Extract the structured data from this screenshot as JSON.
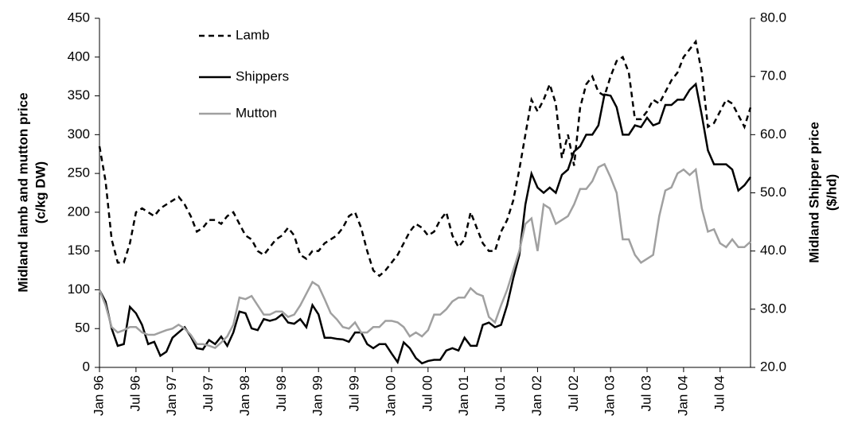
{
  "chart_data": {
    "type": "line",
    "y_label": [
      "Midland lamb and mutton price",
      "(c/kg DW)"
    ],
    "y2_label": [
      "Midland Shipper price",
      "($/hd)"
    ],
    "categories": [
      "Jan 96",
      null,
      null,
      null,
      null,
      null,
      "Jul 96",
      null,
      null,
      null,
      null,
      null,
      "Jan 97",
      null,
      null,
      null,
      null,
      null,
      "Jul 97",
      null,
      null,
      null,
      null,
      null,
      "Jan 98",
      null,
      null,
      null,
      null,
      null,
      "Jul 98",
      null,
      null,
      null,
      null,
      null,
      "Jan 99",
      null,
      null,
      null,
      null,
      null,
      "Jul 99",
      null,
      null,
      null,
      null,
      null,
      "Jan 00",
      null,
      null,
      null,
      null,
      null,
      "Jul 00",
      null,
      null,
      null,
      null,
      null,
      "Jan 01",
      null,
      null,
      null,
      null,
      null,
      "Jul 01",
      null,
      null,
      null,
      null,
      null,
      "Jan 02",
      null,
      null,
      null,
      null,
      null,
      "Jul 02",
      null,
      null,
      null,
      null,
      null,
      "Jan 03",
      null,
      null,
      null,
      null,
      null,
      "Jul 03",
      null,
      null,
      null,
      null,
      null,
      "Jan 04",
      null,
      null,
      null,
      null,
      null,
      "Jul 04",
      null,
      null,
      null,
      null,
      null
    ],
    "ylim": [
      0,
      450
    ],
    "yticks": [
      0,
      50,
      100,
      150,
      200,
      250,
      300,
      350,
      400,
      450
    ],
    "y2lim": [
      20,
      80
    ],
    "y2ticks": [
      {
        "value": 20,
        "label": "20.0"
      },
      {
        "value": 30,
        "label": "30.0"
      },
      {
        "value": 40,
        "label": "40.0"
      },
      {
        "value": 50,
        "label": "50.0"
      },
      {
        "value": 60,
        "label": "60.0"
      },
      {
        "value": 70,
        "label": "70.0"
      },
      {
        "value": 80,
        "label": "80.0"
      }
    ],
    "grid": false,
    "legend": "top-left",
    "series": [
      {
        "name": "Lamb",
        "color": "#000000",
        "dashed": true,
        "values": [
          285,
          240,
          165,
          135,
          135,
          160,
          200,
          205,
          200,
          195,
          205,
          210,
          215,
          220,
          210,
          195,
          175,
          180,
          190,
          190,
          185,
          195,
          200,
          185,
          170,
          165,
          150,
          145,
          155,
          165,
          170,
          180,
          170,
          145,
          140,
          150,
          150,
          160,
          165,
          170,
          180,
          195,
          200,
          180,
          150,
          125,
          118,
          125,
          135,
          145,
          160,
          175,
          185,
          180,
          170,
          175,
          190,
          200,
          170,
          155,
          165,
          200,
          180,
          160,
          150,
          150,
          175,
          190,
          215,
          255,
          300,
          345,
          330,
          345,
          365,
          340,
          270,
          300,
          260,
          335,
          365,
          375,
          355,
          350,
          375,
          395,
          400,
          380,
          320,
          320,
          330,
          345,
          340,
          355,
          370,
          380,
          400,
          410,
          420,
          380,
          310,
          315,
          330,
          345,
          340,
          325,
          310,
          335
        ]
      },
      {
        "name": "Shippers",
        "color": "#000000",
        "axis": "y2",
        "values": [
          33.3,
          31.3,
          26.7,
          23.7,
          24.0,
          30.4,
          29.3,
          27.3,
          24.0,
          24.4,
          22.0,
          22.7,
          25.1,
          26.0,
          26.9,
          25.3,
          23.3,
          23.1,
          24.7,
          24.0,
          25.3,
          23.7,
          26.0,
          29.6,
          29.3,
          26.7,
          26.4,
          28.3,
          28.0,
          28.3,
          29.1,
          27.7,
          27.5,
          28.3,
          26.9,
          30.7,
          29.1,
          25.1,
          25.1,
          24.9,
          24.8,
          24.4,
          26.0,
          26.0,
          24.0,
          23.3,
          24.0,
          24.0,
          22.4,
          20.9,
          24.3,
          23.3,
          21.6,
          20.7,
          21.1,
          21.3,
          21.3,
          22.9,
          23.3,
          22.9,
          25.1,
          23.7,
          23.7,
          27.3,
          27.7,
          26.9,
          27.3,
          30.7,
          35.3,
          39.3,
          48.0,
          53.3,
          50.9,
          50.0,
          50.9,
          50.0,
          53.1,
          54.0,
          57.1,
          58.0,
          60.0,
          60.0,
          61.6,
          66.9,
          66.7,
          64.7,
          60.0,
          60.0,
          61.6,
          61.3,
          62.9,
          61.6,
          62.0,
          65.1,
          65.1,
          66.0,
          66.0,
          67.7,
          68.7,
          63.3,
          57.3,
          54.9,
          54.9,
          54.9,
          54.0,
          50.4,
          51.3,
          52.7
        ]
      },
      {
        "name": "Mutton",
        "color": "#a0a0a0",
        "values": [
          100,
          80,
          52,
          45,
          48,
          52,
          52,
          45,
          42,
          42,
          45,
          48,
          50,
          55,
          50,
          42,
          30,
          30,
          28,
          25,
          32,
          40,
          55,
          90,
          88,
          92,
          80,
          68,
          68,
          72,
          72,
          65,
          68,
          80,
          95,
          110,
          105,
          88,
          70,
          62,
          52,
          50,
          58,
          45,
          45,
          52,
          52,
          60,
          60,
          58,
          52,
          40,
          45,
          40,
          48,
          68,
          68,
          75,
          85,
          90,
          90,
          102,
          95,
          92,
          65,
          58,
          80,
          100,
          125,
          150,
          185,
          192,
          150,
          210,
          205,
          185,
          190,
          195,
          210,
          230,
          230,
          240,
          258,
          262,
          245,
          225,
          165,
          165,
          145,
          135,
          140,
          145,
          195,
          228,
          232,
          250,
          255,
          248,
          255,
          205,
          175,
          178,
          160,
          155,
          165,
          155,
          155,
          162
        ]
      }
    ]
  }
}
